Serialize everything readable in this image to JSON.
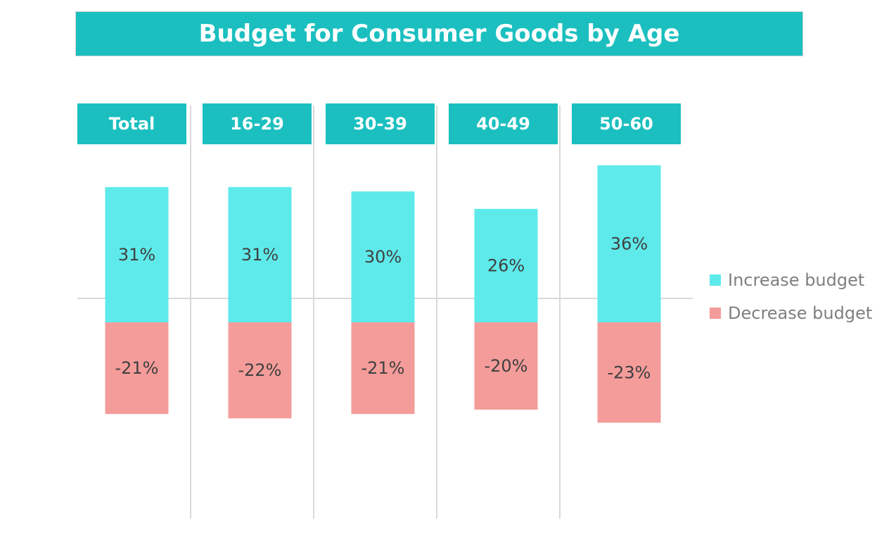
{
  "chart_data": {
    "type": "bar",
    "title": "Budget for Consumer Goods by Age",
    "categories": [
      "Total",
      "16-29",
      "30-39",
      "40-49",
      "50-60"
    ],
    "series": [
      {
        "name": "Increase budget",
        "color": "#5eeaea",
        "values": [
          31,
          31,
          30,
          26,
          36
        ],
        "labels": [
          "31%",
          "31%",
          "30%",
          "26%",
          "36%"
        ]
      },
      {
        "name": "Decrease budget",
        "color": "#f49c9a",
        "values": [
          -21,
          -22,
          -21,
          -20,
          -23
        ],
        "labels": [
          "-21%",
          "-22%",
          "-21%",
          "-20%",
          "-23%"
        ]
      }
    ],
    "ylim": [
      -45,
      50
    ],
    "header_color": "#1bbfbf",
    "legend_position": "right"
  }
}
